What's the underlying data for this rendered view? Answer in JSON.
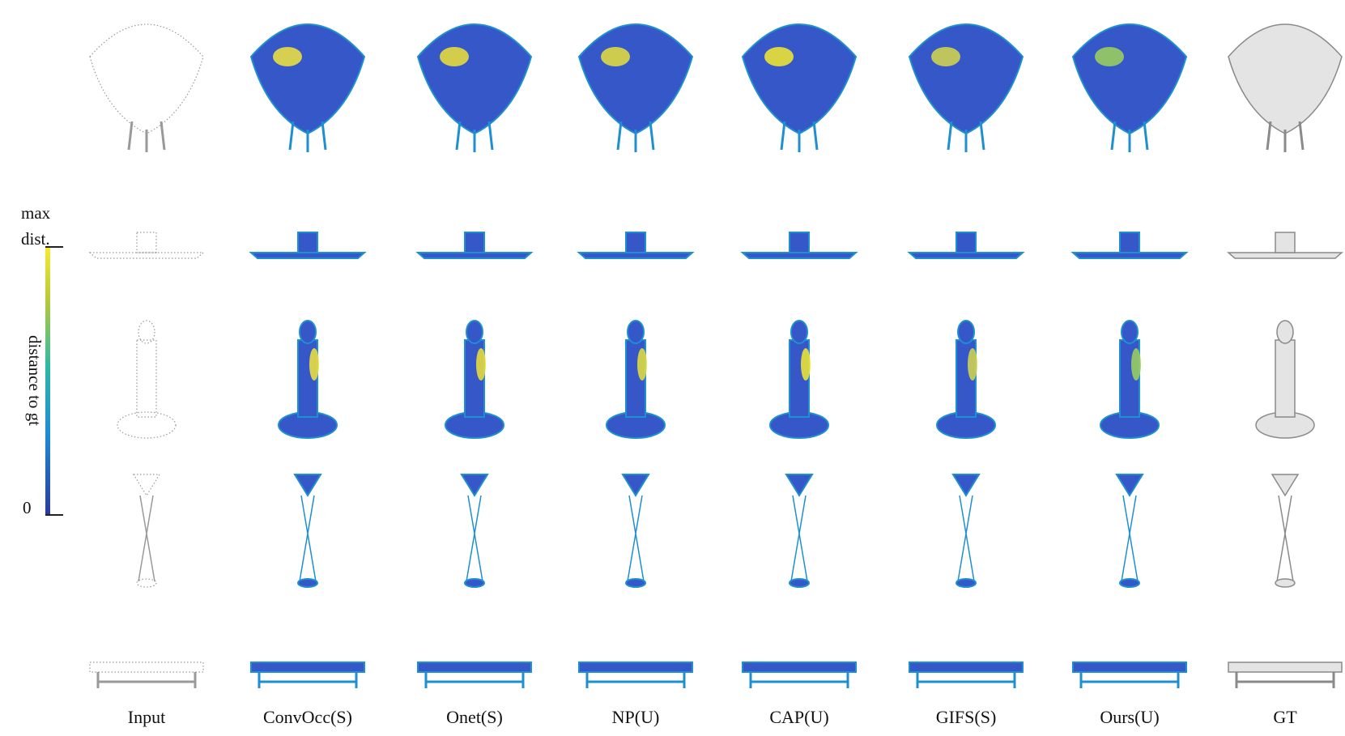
{
  "columns": [
    "Input",
    "ConvOcc(S)",
    "Onet(S)",
    "NP(U)",
    "CAP(U)",
    "GIFS(S)",
    "Ours(U)",
    "GT"
  ],
  "colorbar": {
    "max_label_lines": [
      "max",
      "dist."
    ],
    "min_label": "0",
    "axis_label": "distance to gt"
  }
}
